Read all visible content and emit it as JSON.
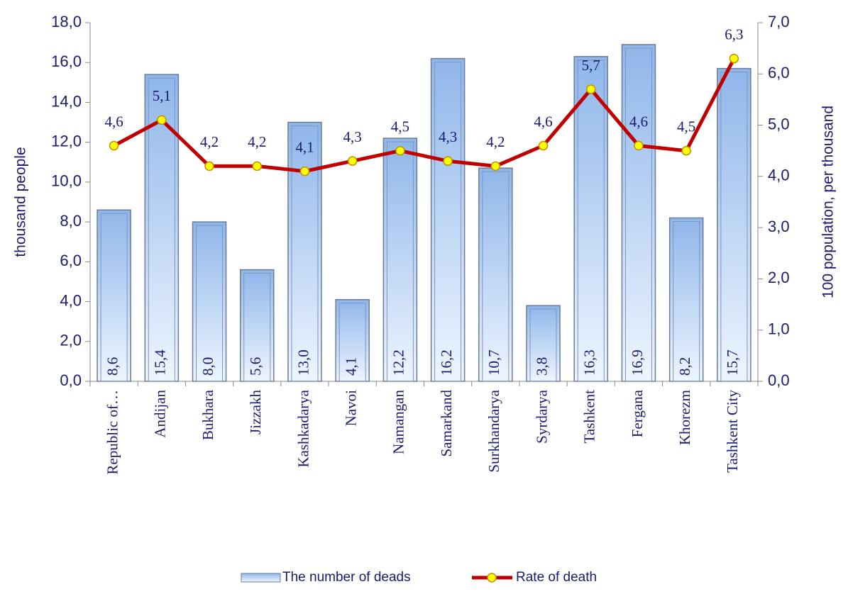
{
  "chart_data": {
    "type": "bar",
    "categories": [
      "Republic of…",
      "Andijan",
      "Bukhara",
      "Jizzakh",
      "Kashkadarya",
      "Navoi",
      "Namangan",
      "Samarkand",
      "Surkhandarya",
      "Syrdarya",
      "Tashkent",
      "Fergana",
      "Khorezm",
      "Tashkent City"
    ],
    "y_label": "thousand people",
    "y2_label": "100 population, per thousand",
    "series": [
      {
        "name": "The number of deads",
        "type": "bar",
        "color": "#9dc3f0",
        "values": [
          8.6,
          15.4,
          8.0,
          5.6,
          13.0,
          4.1,
          12.2,
          16.2,
          10.7,
          3.8,
          16.3,
          16.9,
          8.2,
          15.7
        ],
        "value_labels": [
          "8,6",
          "15,4",
          "8,0",
          "5,6",
          "13,0",
          "4,1",
          "12,2",
          "16,2",
          "10,7",
          "3,8",
          "16,3",
          "16,9",
          "8,2",
          "15,7"
        ]
      },
      {
        "name": "Rate of death",
        "type": "line",
        "axis": "y2",
        "color": "#c00000",
        "marker_color": "#ffff00",
        "values": [
          4.6,
          5.1,
          4.2,
          4.2,
          4.1,
          4.3,
          4.5,
          4.3,
          4.2,
          4.6,
          5.7,
          4.6,
          4.5,
          6.3
        ],
        "value_labels": [
          "4,6",
          "5,1",
          "4,2",
          "4,2",
          "4,1",
          "4,3",
          "4,5",
          "4,3",
          "4,2",
          "4,6",
          "5,7",
          "4,6",
          "4,5",
          "6,3"
        ]
      }
    ],
    "ylim": [
      0,
      18
    ],
    "yticks": [
      {
        "value": 0,
        "label": "0,0"
      },
      {
        "value": 2,
        "label": "2,0"
      },
      {
        "value": 4,
        "label": "4,0"
      },
      {
        "value": 6,
        "label": "6,0"
      },
      {
        "value": 8,
        "label": "8,0"
      },
      {
        "value": 10,
        "label": "10,0"
      },
      {
        "value": 12,
        "label": "12,0"
      },
      {
        "value": 14,
        "label": "14,0"
      },
      {
        "value": 16,
        "label": "16,0"
      },
      {
        "value": 18,
        "label": "18,0"
      }
    ],
    "y2lim": [
      0,
      7
    ],
    "y2ticks": [
      {
        "value": 0,
        "label": "0,0"
      },
      {
        "value": 1,
        "label": "1,0"
      },
      {
        "value": 2,
        "label": "2,0"
      },
      {
        "value": 3,
        "label": "3,0"
      },
      {
        "value": 4,
        "label": "4,0"
      },
      {
        "value": 5,
        "label": "5,0"
      },
      {
        "value": 6,
        "label": "6,0"
      },
      {
        "value": 7,
        "label": "7,0"
      }
    ],
    "legend": "bottom"
  }
}
